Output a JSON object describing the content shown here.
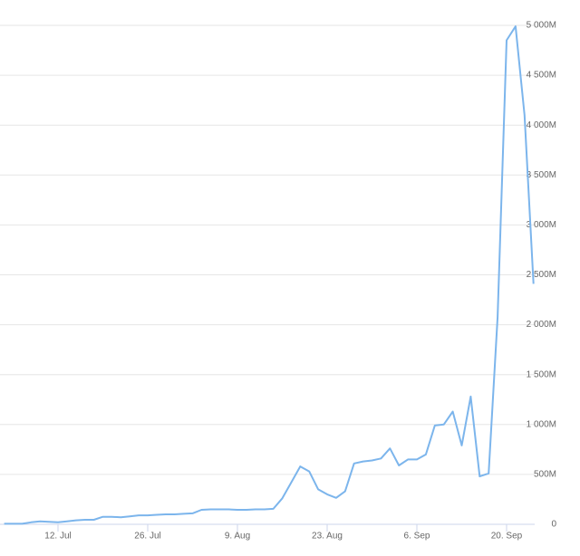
{
  "chart_data": {
    "type": "line",
    "categories": [
      null,
      null,
      null,
      null,
      null,
      null,
      "12. Jul",
      null,
      null,
      null,
      null,
      null,
      null,
      null,
      null,
      null,
      "26. Jul",
      null,
      null,
      null,
      null,
      null,
      null,
      null,
      null,
      null,
      "9. Aug",
      null,
      null,
      null,
      null,
      null,
      null,
      null,
      null,
      null,
      "23. Aug",
      null,
      null,
      null,
      null,
      null,
      null,
      null,
      null,
      null,
      "6. Sep",
      null,
      null,
      null,
      null,
      null,
      null,
      null,
      null,
      null,
      "20. Sep",
      null,
      null,
      null
    ],
    "series": [
      {
        "color": "#7cb5ec",
        "values": [
          5,
          5,
          5,
          20,
          30,
          25,
          20,
          30,
          40,
          45,
          45,
          75,
          75,
          70,
          80,
          90,
          90,
          95,
          100,
          100,
          105,
          110,
          145,
          150,
          150,
          150,
          145,
          145,
          150,
          150,
          155,
          260,
          420,
          580,
          530,
          350,
          300,
          265,
          330,
          610,
          630,
          640,
          660,
          760,
          590,
          650,
          650,
          700,
          990,
          1000,
          1130,
          790,
          1280,
          480,
          510,
          2080,
          4850,
          4990,
          4100,
          2410
        ]
      }
    ],
    "ylim": [
      0,
      5000
    ],
    "yticks": [
      0,
      {
        "value": 500,
        "label": "500M"
      },
      {
        "value": 1000,
        "label": "1 000M"
      },
      {
        "value": 1500,
        "label": "1 500M"
      },
      {
        "value": 2000,
        "label": "2 000M"
      },
      {
        "value": 2500,
        "label": "2 500M"
      },
      {
        "value": 3000,
        "label": "3 000M"
      },
      {
        "value": 3500,
        "label": "3 500M"
      },
      {
        "value": 4000,
        "label": "4 000M"
      },
      {
        "value": 4500,
        "label": "4 500M"
      },
      {
        "value": 5000,
        "label": "5 000M"
      }
    ],
    "grid": true
  }
}
